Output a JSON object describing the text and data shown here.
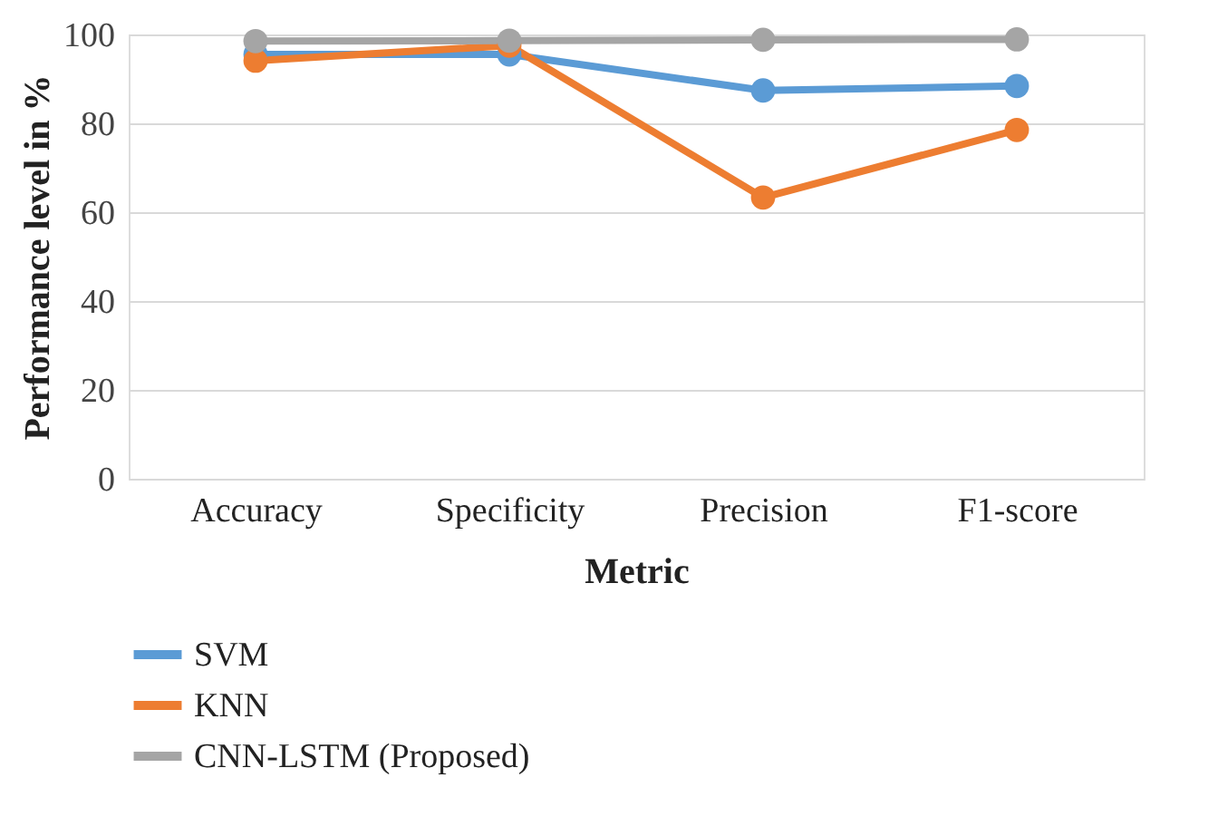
{
  "chart_data": {
    "type": "line",
    "categories": [
      "Accuracy",
      "Specificity",
      "Precision",
      "F1-score"
    ],
    "xlabel": "Metric",
    "ylabel": "Performance level in %",
    "ylim": [
      0,
      100
    ],
    "yticks": [
      0,
      20,
      40,
      60,
      80,
      100
    ],
    "grid": "y",
    "legend": "bottom",
    "marker": "circle",
    "line_style": "solid",
    "series": [
      {
        "name": "SVM",
        "color": "#5b9bd5",
        "values": [
          95.5,
          95.5,
          87.4,
          88.4
        ]
      },
      {
        "name": "KNN",
        "color": "#ed7d31",
        "values": [
          94.1,
          97.5,
          63.3,
          78.5
        ]
      },
      {
        "name": "CNN-LSTM (Proposed)",
        "color": "#a5a5a5",
        "values": [
          98.5,
          98.6,
          98.8,
          98.9
        ]
      }
    ]
  }
}
